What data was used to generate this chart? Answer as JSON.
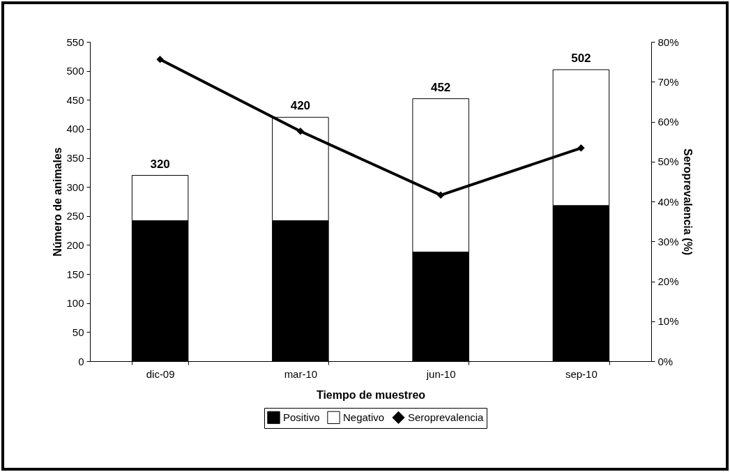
{
  "chart_data": {
    "type": "bar",
    "stacked": true,
    "xlabel": "Tiempo de muestreo",
    "ylabel": "Número de animales",
    "y2label": "Seroprevalencia (%)",
    "categories": [
      "dic-09",
      "mar-10",
      "jun-10",
      "sep-10"
    ],
    "series": [
      {
        "name": "Positivo",
        "color": "#000000",
        "values": [
          242,
          242,
          188,
          268
        ]
      },
      {
        "name": "Negativo",
        "color": "#ffffff",
        "values": [
          78,
          178,
          264,
          234
        ]
      },
      {
        "name": "Seroprevalencia",
        "type": "line",
        "axis": "y2",
        "color": "#000000",
        "values": [
          75.6,
          57.6,
          41.6,
          53.4
        ]
      }
    ],
    "totals": [
      "320",
      "420",
      "452",
      "502"
    ],
    "ylim": [
      0,
      550
    ],
    "yticks": [
      0,
      50,
      100,
      150,
      200,
      250,
      300,
      350,
      400,
      450,
      500,
      550
    ],
    "y2lim": [
      0,
      80
    ],
    "y2ticks": [
      {
        "value": 0,
        "label": "0%"
      },
      {
        "value": 10,
        "label": "10%"
      },
      {
        "value": 20,
        "label": "20%"
      },
      {
        "value": 30,
        "label": "30%"
      },
      {
        "value": 40,
        "label": "40%"
      },
      {
        "value": 50,
        "label": "50%"
      },
      {
        "value": 60,
        "label": "60%"
      },
      {
        "value": 70,
        "label": "70%"
      },
      {
        "value": 80,
        "label": "80%"
      }
    ],
    "marker": "diamond",
    "line_style": "solid",
    "legend": "bottom",
    "grid": false
  }
}
